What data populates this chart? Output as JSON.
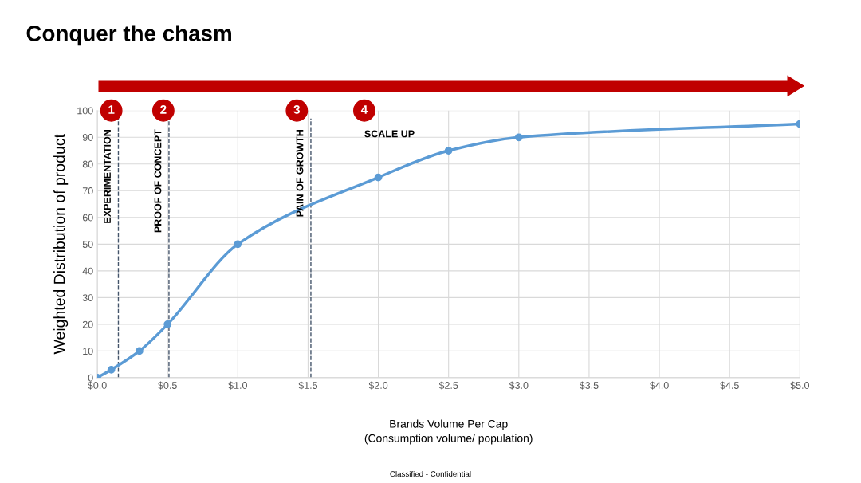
{
  "chart_data": {
    "type": "line",
    "title": "Conquer the chasm",
    "xlabel": "Brands Volume Per Cap\n(Consumption volume/ population)",
    "ylabel": "Weighted Distribution of product",
    "x": [
      0,
      0.1,
      0.3,
      0.5,
      1.0,
      2.0,
      2.5,
      3.0,
      5.0
    ],
    "series": [
      {
        "color": "#5b9bd5",
        "values": [
          0,
          3,
          10,
          20,
          50,
          75,
          85,
          90,
          95
        ]
      }
    ],
    "marker": "circle",
    "line_style": "solid",
    "grid": true,
    "xlim": [
      0,
      5
    ],
    "xticks": [
      {
        "value": 0,
        "label": "$0.0"
      },
      {
        "value": 0.5,
        "label": "$0.5"
      },
      {
        "value": 1,
        "label": "$1.0"
      },
      {
        "value": 1.5,
        "label": "$1.5"
      },
      {
        "value": 2,
        "label": "$2.0"
      },
      {
        "value": 2.5,
        "label": "$2.5"
      },
      {
        "value": 3,
        "label": "$3.0"
      },
      {
        "value": 3.5,
        "label": "$3.5"
      },
      {
        "value": 4,
        "label": "$4.0"
      },
      {
        "value": 4.5,
        "label": "$4.5"
      },
      {
        "value": 5,
        "label": "$5.0"
      }
    ],
    "ylim": [
      0,
      100
    ],
    "yticks": [
      0,
      10,
      20,
      30,
      40,
      50,
      60,
      70,
      80,
      90,
      100
    ],
    "ref_lines": [
      {
        "axis": "x",
        "value": 0.15,
        "label": "EXPERIMENTATION",
        "color": "#44546a",
        "line_style": "dashed"
      },
      {
        "axis": "x",
        "value": 0.51,
        "label": "PROOF OF CONCEPT",
        "color": "#44546a",
        "line_style": "dashed"
      },
      {
        "axis": "x",
        "value": 1.52,
        "label": "PAIN OF GROWTH",
        "color": "#44546a",
        "line_style": "dashed"
      }
    ],
    "annotations": [
      {
        "text": "1",
        "x": 0.1,
        "y": 100
      },
      {
        "text": "2",
        "x": 0.47,
        "y": 100
      },
      {
        "text": "3",
        "x": 1.42,
        "y": 100
      },
      {
        "text": "4",
        "x": 1.9,
        "y": 100
      },
      "SCALE UP",
      "Classified - Confidential"
    ]
  }
}
